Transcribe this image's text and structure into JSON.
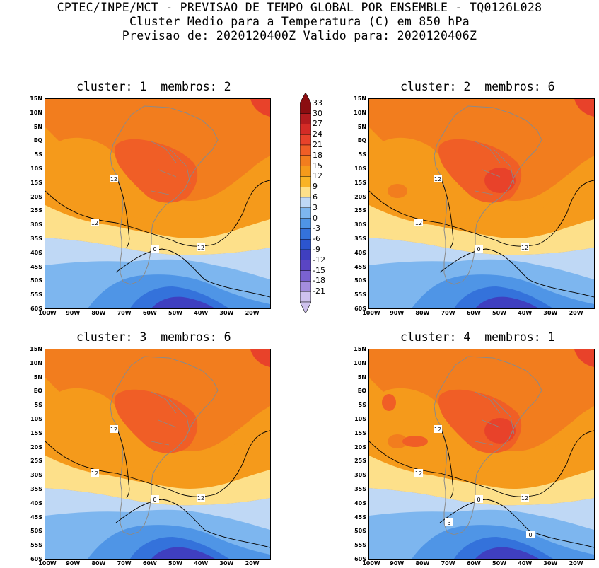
{
  "header": {
    "line1": "CPTEC/INPE/MCT - PREVISAO DE TEMPO GLOBAL POR ENSEMBLE - TQ0126L028",
    "line2": "Cluster Medio para a Temperatura (C) em 850 hPa",
    "line3": "Previsao de: 2020120400Z   Valido para: 2020120406Z"
  },
  "panels": [
    {
      "title": "cluster: 1  membros: 2"
    },
    {
      "title": "cluster: 2  membros: 6"
    },
    {
      "title": "cluster: 3  membros: 6"
    },
    {
      "title": "cluster: 4  membros: 1"
    }
  ],
  "axes": {
    "lat_labels": [
      "15N",
      "10N",
      "5N",
      "EQ",
      "5S",
      "10S",
      "15S",
      "20S",
      "25S",
      "30S",
      "35S",
      "40S",
      "45S",
      "50S",
      "55S",
      "60S"
    ],
    "lon_labels": [
      "100W",
      "90W",
      "80W",
      "70W",
      "60W",
      "50W",
      "40W",
      "30W",
      "20W"
    ]
  },
  "contour_labels": {
    "twelve": "12",
    "zero": "0",
    "three": "3"
  },
  "colorbar": {
    "labels": [
      "33",
      "30",
      "27",
      "24",
      "21",
      "18",
      "15",
      "12",
      "9",
      "6",
      "3",
      "0",
      "-3",
      "-6",
      "-9",
      "-12",
      "-15",
      "-18",
      "-21"
    ],
    "colors": [
      "#8b0d10",
      "#b21b1e",
      "#d42b26",
      "#e8422a",
      "#f05e26",
      "#f27d1e",
      "#f59a1b",
      "#f9b326",
      "#fde08a",
      "#bfd8f5",
      "#7db6ef",
      "#4f95e6",
      "#3472db",
      "#2c55ce",
      "#3f3fc0",
      "#5a45c4",
      "#7a62d0",
      "#a48ede",
      "#cfc2ee"
    ]
  }
}
